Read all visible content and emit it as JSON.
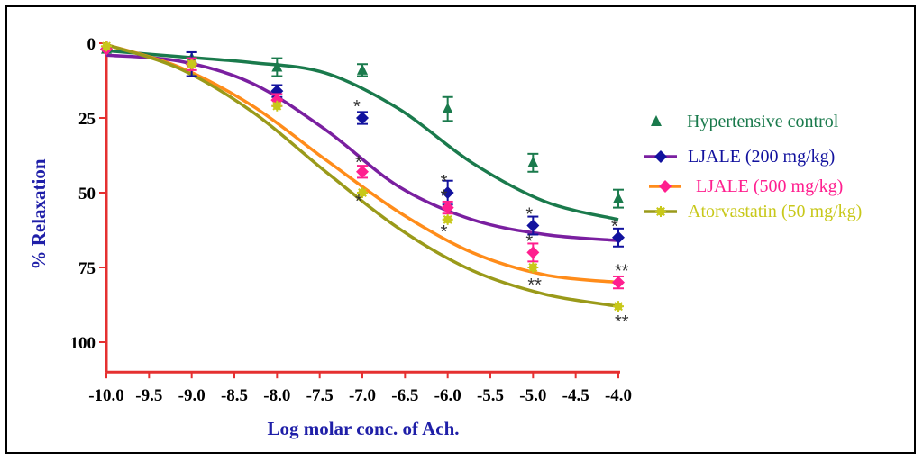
{
  "chart_data": {
    "type": "line",
    "title": "",
    "xlabel": "Log molar conc. of Ach.",
    "ylabel": "% Relaxation",
    "xlim": [
      -10.0,
      -4.0
    ],
    "ylim": [
      110,
      0
    ],
    "y_inverted": true,
    "x_ticks": [
      "-10.0",
      "-9.5",
      "-9.0",
      "-8.5",
      "-8.0",
      "-7.5",
      "-7.0",
      "-6.5",
      "-6.0",
      "-5.5",
      "-5.0",
      "-4.5",
      "-4.0"
    ],
    "x_tick_values": [
      -10.0,
      -9.5,
      -9.0,
      -8.5,
      -8.0,
      -7.5,
      -7.0,
      -6.5,
      -6.0,
      -5.5,
      -5.0,
      -4.5,
      -4.0
    ],
    "y_ticks": [
      "0",
      "25",
      "50",
      "75",
      "100"
    ],
    "y_tick_values": [
      0,
      25,
      50,
      75,
      100
    ],
    "grid": false,
    "legend_position": "right",
    "series": [
      {
        "name": "Hypertensive  control",
        "color": "#1a7a4c",
        "marker": "triangle",
        "x": [
          -10,
          -9,
          -8,
          -7,
          -6,
          -5,
          -4
        ],
        "y": [
          2,
          5,
          8,
          9,
          22,
          40,
          52
        ],
        "err": [
          0,
          2,
          3,
          2,
          4,
          3,
          3
        ],
        "fit": [
          2.5,
          4.5,
          6.5,
          10,
          22,
          40,
          53,
          59
        ]
      },
      {
        "name": "LJALE (200 mg/kg)",
        "color": "#12129e",
        "line_color": "#7a1fa0",
        "marker": "diamond",
        "x": [
          -10,
          -9,
          -8,
          -7,
          -6,
          -5,
          -4
        ],
        "y": [
          2,
          7,
          16,
          25,
          50,
          61,
          65
        ],
        "err": [
          0,
          4,
          2,
          2,
          4,
          3,
          3
        ],
        "fit": [
          4,
          6,
          13.5,
          29,
          48,
          59,
          64,
          66
        ]
      },
      {
        "name": "LJALE (500 mg/kg)",
        "color": "#ff1f8f",
        "line_color": "#ff8c1a",
        "marker": "diamond",
        "x": [
          -10,
          -9,
          -8,
          -7,
          -6,
          -5,
          -4
        ],
        "y": [
          2,
          7,
          19,
          43,
          55,
          70,
          80
        ],
        "err": [
          0,
          2,
          2,
          2,
          2,
          3,
          2
        ],
        "fit": [
          0.5,
          8,
          21,
          39,
          56.5,
          70,
          77.5,
          80
        ]
      },
      {
        "name": "Atorvastatin (50 mg/kg)",
        "color": "#c8c81a",
        "line_color": "#9a9a1a",
        "marker": "star",
        "x": [
          -10,
          -9,
          -8,
          -7,
          -6,
          -5,
          -4
        ],
        "y": [
          1,
          7,
          21,
          50,
          59,
          75,
          88
        ],
        "err": [
          0,
          0,
          0,
          0,
          0,
          0,
          0
        ],
        "fit": [
          0.5,
          8.5,
          23,
          43,
          62,
          76,
          84,
          88
        ]
      }
    ],
    "annotations": [
      {
        "x": -7.0,
        "y": 25,
        "text": "*"
      },
      {
        "x": -7.0,
        "y": 43,
        "text": "*"
      },
      {
        "x": -7.0,
        "y": 50,
        "text": "*"
      },
      {
        "x": -6.0,
        "y": 50,
        "text": "*"
      },
      {
        "x": -6.0,
        "y": 55,
        "text": "*"
      },
      {
        "x": -6.0,
        "y": 59,
        "text": "*"
      },
      {
        "x": -5.0,
        "y": 61,
        "text": "*"
      },
      {
        "x": -5.0,
        "y": 70,
        "text": "*"
      },
      {
        "x": -5.0,
        "y": 75,
        "text": "**"
      },
      {
        "x": -4.0,
        "y": 65,
        "text": "*"
      },
      {
        "x": -4.0,
        "y": 80,
        "text": "**"
      },
      {
        "x": -4.0,
        "y": 88,
        "text": "**"
      }
    ]
  }
}
